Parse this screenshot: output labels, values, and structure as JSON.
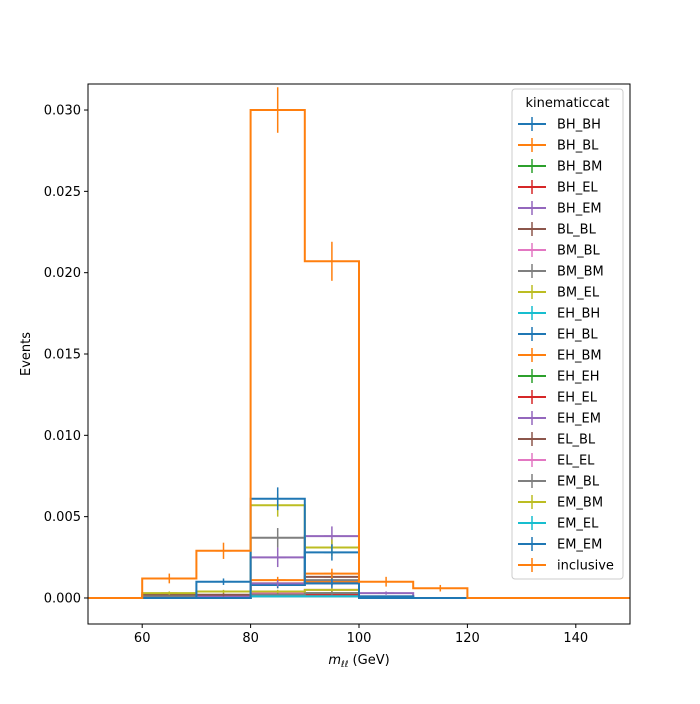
{
  "chart_data": {
    "type": "histogram-step",
    "xlabel": "m_ll (GeV)",
    "xlabel_main": "m",
    "xlabel_sub": "ℓℓ",
    "xlabel_unit": " (GeV)",
    "ylabel": "Events",
    "xlim": [
      50,
      150
    ],
    "ylim": [
      -0.0016,
      0.0316
    ],
    "xticks": [
      60,
      80,
      100,
      120,
      140
    ],
    "xtick_labels": [
      "60",
      "80",
      "100",
      "120",
      "140"
    ],
    "yticks": [
      0.0,
      0.005,
      0.01,
      0.015,
      0.02,
      0.025,
      0.03
    ],
    "ytick_labels": [
      "0.000",
      "0.005",
      "0.010",
      "0.015",
      "0.020",
      "0.025",
      "0.030"
    ],
    "bin_edges": [
      50,
      60,
      70,
      80,
      90,
      100,
      110,
      120,
      130,
      140,
      150
    ],
    "legend": {
      "title": "kinematiccat",
      "placement": "top-right"
    },
    "series": [
      {
        "name": "BH_BH",
        "color": "#1f77b4",
        "values": [
          0,
          0,
          0,
          0.0001,
          0.0001,
          0,
          0,
          0,
          0,
          0
        ],
        "errors": [
          0,
          0,
          0,
          5e-05,
          5e-05,
          0,
          0,
          0,
          0,
          0
        ]
      },
      {
        "name": "BH_BL",
        "color": "#ff7f0e",
        "values": [
          0,
          0,
          0,
          0.0009,
          0.001,
          0,
          0,
          0,
          0,
          0
        ],
        "errors": [
          0,
          0,
          0,
          0.0002,
          0.0002,
          0,
          0,
          0,
          0,
          0
        ]
      },
      {
        "name": "BH_BM",
        "color": "#2ca02c",
        "values": [
          0,
          0,
          0,
          0.0002,
          0.0003,
          0,
          0,
          0,
          0,
          0
        ],
        "errors": [
          0,
          0,
          0,
          0.0001,
          0.0001,
          0,
          0,
          0,
          0,
          0
        ]
      },
      {
        "name": "BH_EL",
        "color": "#d62728",
        "values": [
          0,
          0,
          0,
          0.0003,
          0.0002,
          0,
          0,
          0,
          0,
          0
        ],
        "errors": [
          0,
          0,
          0,
          0.0001,
          0.0001,
          0,
          0,
          0,
          0,
          0
        ]
      },
      {
        "name": "BH_EM",
        "color": "#9467bd",
        "values": [
          0,
          0,
          0.0001,
          0.0025,
          0.0038,
          0.0003,
          0,
          0,
          0,
          0
        ],
        "errors": [
          0,
          0,
          5e-05,
          0.0006,
          0.0006,
          0.0001,
          0,
          0,
          0,
          0
        ]
      },
      {
        "name": "BL_BL",
        "color": "#8c564b",
        "values": [
          0,
          0.0002,
          0.0002,
          0.0008,
          0.0013,
          0.0001,
          0,
          0,
          0,
          0
        ],
        "errors": [
          0,
          0.0001,
          0.0001,
          0.0002,
          0.0003,
          5e-05,
          0,
          0,
          0,
          0
        ]
      },
      {
        "name": "BM_BL",
        "color": "#e377c2",
        "values": [
          0,
          0,
          0,
          0.0003,
          0.0005,
          0,
          0,
          0,
          0,
          0
        ],
        "errors": [
          0,
          0,
          0,
          0.0001,
          0.0001,
          0,
          0,
          0,
          0,
          0
        ]
      },
      {
        "name": "BM_BM",
        "color": "#7f7f7f",
        "values": [
          0,
          0.0001,
          0,
          0.0037,
          0.0011,
          0,
          0,
          0,
          0,
          0
        ],
        "errors": [
          0,
          5e-05,
          0,
          0.0006,
          0.0003,
          0,
          0,
          0,
          0,
          0
        ]
      },
      {
        "name": "BM_EL",
        "color": "#bcbd22",
        "values": [
          0,
          0.0003,
          0.0004,
          0.0057,
          0.0031,
          0,
          0,
          0,
          0,
          0
        ],
        "errors": [
          0,
          0.0001,
          0.0001,
          0.0007,
          0.0005,
          0,
          0,
          0,
          0,
          0
        ]
      },
      {
        "name": "EH_BH",
        "color": "#17becf",
        "values": [
          0,
          0,
          0,
          0.0001,
          0.0001,
          0,
          0,
          0,
          0,
          0
        ],
        "errors": [
          0,
          0,
          0,
          5e-05,
          5e-05,
          0,
          0,
          0,
          0,
          0
        ]
      },
      {
        "name": "EH_BL",
        "color": "#1f77b4",
        "values": [
          0,
          0,
          0.001,
          0.0008,
          0.0028,
          0.0001,
          0,
          0,
          0,
          0
        ],
        "errors": [
          0,
          0,
          0.0002,
          0.0002,
          0.0005,
          5e-05,
          0,
          0,
          0,
          0
        ]
      },
      {
        "name": "EH_BM",
        "color": "#ff7f0e",
        "values": [
          0,
          0,
          0,
          0.0011,
          0.0015,
          0,
          0,
          0,
          0,
          0
        ],
        "errors": [
          0,
          0,
          0,
          0.0002,
          0.0003,
          0,
          0,
          0,
          0,
          0
        ]
      },
      {
        "name": "EH_EH",
        "color": "#2ca02c",
        "values": [
          0,
          0,
          0,
          0.0001,
          0.0001,
          0,
          0,
          0,
          0,
          0
        ],
        "errors": [
          0,
          0,
          0,
          5e-05,
          5e-05,
          0,
          0,
          0,
          0,
          0
        ]
      },
      {
        "name": "EH_EL",
        "color": "#d62728",
        "values": [
          0,
          0,
          0,
          0.0002,
          0.0001,
          0,
          0,
          0,
          0,
          0
        ],
        "errors": [
          0,
          0,
          0,
          0.0001,
          5e-05,
          0,
          0,
          0,
          0,
          0
        ]
      },
      {
        "name": "EH_EM",
        "color": "#9467bd",
        "values": [
          0,
          0,
          0,
          0.0009,
          0.0009,
          0,
          0,
          0,
          0,
          0
        ],
        "errors": [
          0,
          0,
          0,
          0.0002,
          0.0002,
          0,
          0,
          0,
          0,
          0
        ]
      },
      {
        "name": "EL_BL",
        "color": "#8c564b",
        "values": [
          0,
          0,
          0,
          0.0002,
          0.0001,
          0,
          0,
          0,
          0,
          0
        ],
        "errors": [
          0,
          0,
          0,
          0.0001,
          5e-05,
          0,
          0,
          0,
          0,
          0
        ]
      },
      {
        "name": "EL_EL",
        "color": "#e377c2",
        "values": [
          0,
          0,
          0,
          0.0001,
          0.0001,
          0,
          0,
          0,
          0,
          0
        ],
        "errors": [
          0,
          0,
          0,
          5e-05,
          5e-05,
          0,
          0,
          0,
          0,
          0
        ]
      },
      {
        "name": "EM_BL",
        "color": "#7f7f7f",
        "values": [
          0,
          0,
          0,
          0.0002,
          0.0003,
          0,
          0,
          0,
          0,
          0
        ],
        "errors": [
          0,
          0,
          0,
          0.0001,
          0.0001,
          0,
          0,
          0,
          0,
          0
        ]
      },
      {
        "name": "EM_BM",
        "color": "#bcbd22",
        "values": [
          0,
          0,
          0,
          0.0004,
          0.0005,
          0,
          0,
          0,
          0,
          0
        ],
        "errors": [
          0,
          0,
          0,
          0.0001,
          0.0001,
          0,
          0,
          0,
          0,
          0
        ]
      },
      {
        "name": "EM_EL",
        "color": "#17becf",
        "values": [
          0,
          0,
          0,
          0.0001,
          0.0001,
          0,
          0,
          0,
          0,
          0
        ],
        "errors": [
          0,
          0,
          0,
          5e-05,
          5e-05,
          0,
          0,
          0,
          0,
          0
        ]
      },
      {
        "name": "EM_EM",
        "color": "#1f77b4",
        "values": [
          0,
          0,
          0,
          0.0061,
          0.0009,
          0,
          0,
          0,
          0,
          0
        ],
        "errors": [
          0,
          0,
          0,
          0.0007,
          0.0003,
          0,
          0,
          0,
          0,
          0
        ]
      },
      {
        "name": "inclusive",
        "color": "#ff7f0e",
        "values": [
          0,
          0.0012,
          0.0029,
          0.03,
          0.0207,
          0.001,
          0.0006,
          0,
          0,
          0
        ],
        "errors": [
          0,
          0.0003,
          0.0005,
          0.0014,
          0.0012,
          0.0003,
          0.0002,
          0,
          0,
          0
        ]
      }
    ]
  }
}
